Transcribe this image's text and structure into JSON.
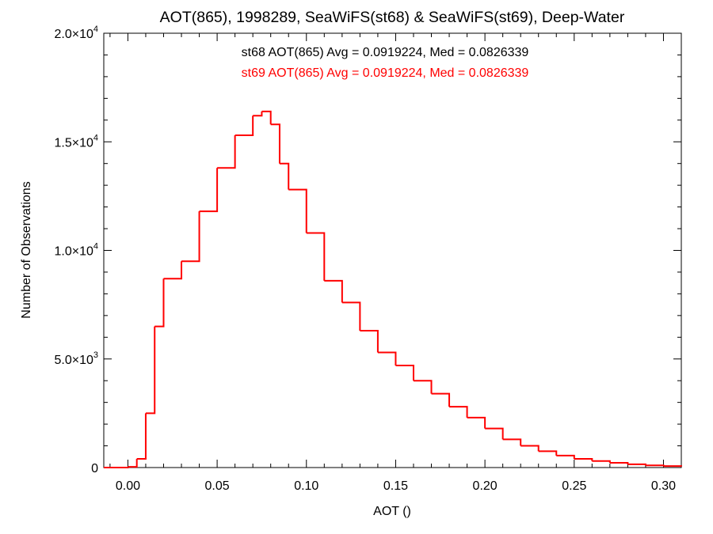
{
  "chart_data": {
    "type": "histogram",
    "title": "AOT(865), 1998289, SeaWiFS(st68) & SeaWiFS(st69), Deep-Water",
    "xlabel": "AOT ()",
    "ylabel": "Number of Observations",
    "xlim": [
      -0.0135,
      0.31
    ],
    "ylim": [
      0,
      20000
    ],
    "x_ticks": [
      {
        "value": 0.0,
        "label": "0.00"
      },
      {
        "value": 0.05,
        "label": "0.05"
      },
      {
        "value": 0.1,
        "label": "0.10"
      },
      {
        "value": 0.15,
        "label": "0.15"
      },
      {
        "value": 0.2,
        "label": "0.20"
      },
      {
        "value": 0.25,
        "label": "0.25"
      },
      {
        "value": 0.3,
        "label": "0.30"
      }
    ],
    "y_ticks": [
      {
        "value": 0,
        "mantissa": "0",
        "exponent": ""
      },
      {
        "value": 5000,
        "mantissa": "5.0×10",
        "exponent": "3"
      },
      {
        "value": 10000,
        "mantissa": "1.0×10",
        "exponent": "4"
      },
      {
        "value": 15000,
        "mantissa": "1.5×10",
        "exponent": "4"
      },
      {
        "value": 20000,
        "mantissa": "2.0×10",
        "exponent": "4"
      }
    ],
    "annotations": [
      {
        "text": "st68 AOT(865) Avg = 0.0919224, Med = 0.0826339",
        "color": "#000000"
      },
      {
        "text": "st69 AOT(865) Avg = 0.0919224, Med = 0.0826339",
        "color": "#ff0000"
      }
    ],
    "series": [
      {
        "color": "#ff0000",
        "x": [
          -0.0135,
          0.0,
          0.005,
          0.01,
          0.015,
          0.02,
          0.03,
          0.04,
          0.05,
          0.06,
          0.07,
          0.075,
          0.08,
          0.085,
          0.09,
          0.1,
          0.11,
          0.12,
          0.13,
          0.14,
          0.15,
          0.16,
          0.17,
          0.18,
          0.19,
          0.2,
          0.21,
          0.22,
          0.23,
          0.24,
          0.25,
          0.26,
          0.27,
          0.28,
          0.29,
          0.3,
          0.31
        ],
        "values": [
          0,
          30,
          400,
          2500,
          6500,
          8700,
          9500,
          11800,
          13800,
          15300,
          16200,
          16400,
          15800,
          14000,
          12800,
          10800,
          8600,
          7600,
          6300,
          5300,
          4700,
          4000,
          3400,
          2800,
          2300,
          1800,
          1300,
          1000,
          750,
          550,
          400,
          300,
          220,
          150,
          100,
          70,
          50
        ]
      }
    ]
  }
}
